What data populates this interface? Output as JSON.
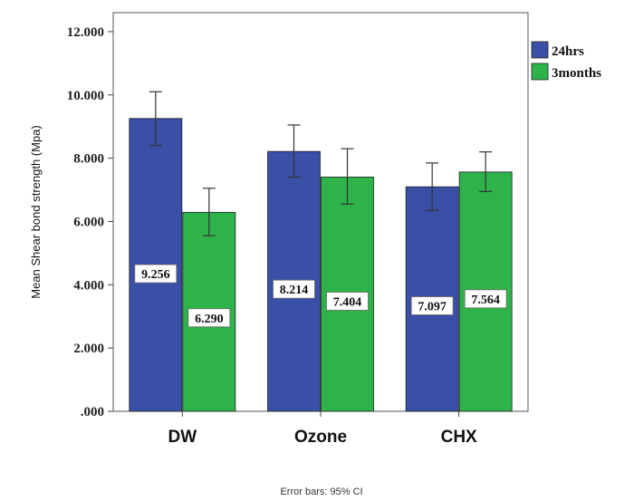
{
  "chart_data": {
    "type": "bar",
    "categories": [
      "DW",
      "Ozone",
      "CHX"
    ],
    "series": [
      {
        "name": "24hrs",
        "color": "#3a4fa6",
        "values": [
          9.256,
          8.214,
          7.097
        ],
        "labels": [
          "9.256",
          "8.214",
          "7.097"
        ],
        "ci_low": [
          8.4,
          7.4,
          6.35
        ],
        "ci_high": [
          10.1,
          9.05,
          7.85
        ]
      },
      {
        "name": "3months",
        "color": "#2db34a",
        "values": [
          6.29,
          7.404,
          7.564
        ],
        "labels": [
          "6.290",
          "7.404",
          "7.564"
        ],
        "ci_low": [
          5.55,
          6.55,
          6.95
        ],
        "ci_high": [
          7.05,
          8.3,
          8.2
        ]
      }
    ],
    "ylabel": "Mean Shear bond strength (Mpa)",
    "ylim": [
      0,
      12.6
    ],
    "yticks": [
      0,
      2,
      4,
      6,
      8,
      10,
      12
    ],
    "ytick_labels": [
      ".000",
      "2.000",
      "4.000",
      "6.000",
      "8.000",
      "10.000",
      "12.000"
    ],
    "legend_position": "top-right",
    "footnote": "Error bars: 95% CI",
    "grid": false
  }
}
